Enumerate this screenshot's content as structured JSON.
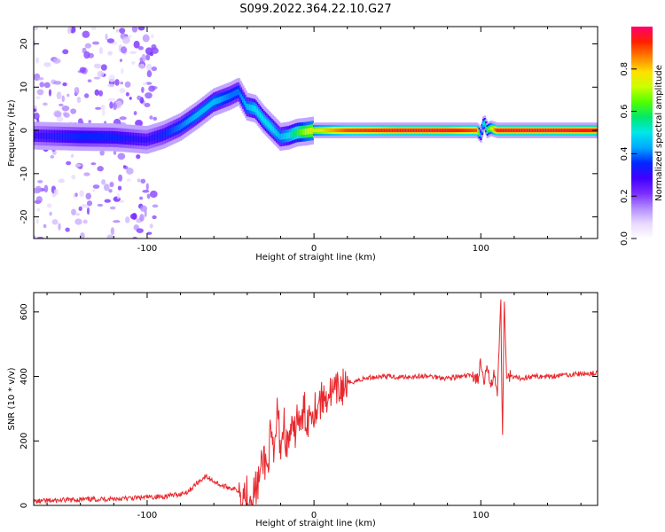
{
  "title": "S099.2022.364.22.10.G27",
  "chart_data": [
    {
      "type": "heatmap",
      "title": "S099.2022.364.22.10.G27",
      "xlabel": "Height of straight line (km)",
      "ylabel": "Frequency (Hz)",
      "xlim": [
        -168,
        170
      ],
      "ylim": [
        -25,
        24
      ],
      "x_ticks": [
        "-100",
        "0",
        "100"
      ],
      "x_tick_values": [
        -100,
        0,
        100
      ],
      "y_ticks": [
        "-20",
        "-10",
        "0",
        "10",
        "20"
      ],
      "y_tick_values": [
        -20,
        -10,
        0,
        10,
        20
      ],
      "colorbar": {
        "label": "Normalized spectral amplitude",
        "range": [
          0,
          1
        ],
        "ticks": [
          "0.0",
          "0.2",
          "0.4",
          "0.6",
          "0.8"
        ],
        "tick_values": [
          0.0,
          0.2,
          0.4,
          0.6,
          0.8
        ],
        "colors": [
          "#ffffff",
          "#e8d8ff",
          "#b28cff",
          "#7a2cff",
          "#4000ff",
          "#0028ff",
          "#00a8ff",
          "#00e8e8",
          "#00e870",
          "#50ff00",
          "#c8ff00",
          "#ffe000",
          "#ff8000",
          "#ff2000",
          "#ff0070"
        ]
      },
      "ridge": {
        "x": [
          -168,
          -140,
          -120,
          -100,
          -90,
          -80,
          -70,
          -60,
          -50,
          -45,
          -40,
          -35,
          -30,
          -25,
          -20,
          -15,
          -10,
          -5,
          0,
          20,
          50,
          80,
          98,
          100,
          102,
          104,
          106,
          110,
          130,
          150,
          170
        ],
        "freq": [
          -1.2,
          -1.5,
          -1.6,
          -2.2,
          -1.0,
          0.8,
          3.5,
          6.5,
          8.0,
          9.0,
          5.5,
          5.0,
          2.5,
          0.5,
          -1.5,
          -1.2,
          -0.5,
          -0.3,
          0.0,
          0.0,
          0.0,
          0.0,
          0.0,
          -1.0,
          2.0,
          0.0,
          0.5,
          0.0,
          0.0,
          0.0,
          0.0
        ],
        "amplitude": [
          0.3,
          0.35,
          0.35,
          0.3,
          0.35,
          0.4,
          0.45,
          0.45,
          0.4,
          0.4,
          0.45,
          0.5,
          0.5,
          0.5,
          0.45,
          0.5,
          0.6,
          0.7,
          0.75,
          0.9,
          0.95,
          0.95,
          0.9,
          0.45,
          0.5,
          0.6,
          0.7,
          0.95,
          0.95,
          0.95,
          0.95
        ]
      }
    },
    {
      "type": "line",
      "xlabel": "Height of straight line (km)",
      "ylabel": "SNR (10 * v/v)",
      "xlim": [
        -168,
        170
      ],
      "ylim": [
        0,
        660
      ],
      "x_ticks": [
        "-100",
        "0",
        "100"
      ],
      "x_tick_values": [
        -100,
        0,
        100
      ],
      "y_ticks": [
        "0",
        "200",
        "400",
        "600"
      ],
      "y_tick_values": [
        0,
        200,
        400,
        600
      ],
      "color": "#e8282d",
      "series": [
        {
          "x": [
            -168,
            -155,
            -140,
            -125,
            -110,
            -100,
            -90,
            -80,
            -75,
            -70,
            -65,
            -60,
            -55,
            -50,
            -45,
            -40,
            -37,
            -34,
            -32,
            -30,
            -28,
            -26,
            -24,
            -22,
            -20,
            -18,
            -16,
            -14,
            -12,
            -10,
            -8,
            -6,
            -4,
            -2,
            0,
            3,
            6,
            9,
            12,
            15,
            18,
            21,
            24,
            28,
            32,
            36,
            40,
            45,
            50,
            60,
            70,
            80,
            90,
            95,
            98,
            100,
            102,
            104,
            106,
            108,
            110,
            111,
            112,
            113,
            114,
            115,
            116,
            118,
            120,
            125,
            130,
            140,
            150,
            160,
            170
          ],
          "y": [
            12,
            15,
            18,
            20,
            22,
            25,
            28,
            35,
            45,
            70,
            90,
            75,
            60,
            55,
            45,
            35,
            30,
            60,
            100,
            150,
            110,
            220,
            130,
            300,
            180,
            260,
            170,
            240,
            200,
            290,
            230,
            300,
            260,
            300,
            300,
            320,
            330,
            350,
            345,
            360,
            370,
            380,
            385,
            390,
            395,
            398,
            400,
            400,
            398,
            400,
            400,
            395,
            400,
            405,
            390,
            440,
            370,
            430,
            380,
            420,
            330,
            510,
            620,
            210,
            660,
            450,
            380,
            400,
            395,
            395,
            400,
            400,
            405,
            408,
            410
          ]
        }
      ]
    }
  ]
}
